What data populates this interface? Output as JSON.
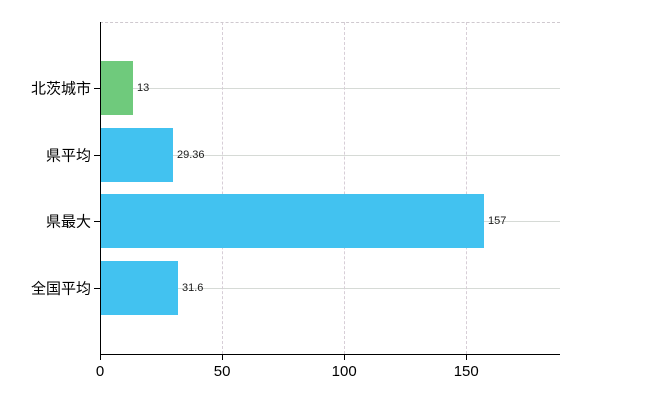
{
  "chart_data": {
    "type": "bar",
    "orientation": "horizontal",
    "title": "",
    "xlabel": "",
    "ylabel": "",
    "categories": [
      "北茨城市",
      "県平均",
      "県最大",
      "全国平均"
    ],
    "values": [
      13,
      29.36,
      157,
      31.6
    ],
    "value_labels": [
      "13",
      "29.36",
      "157",
      "31.6"
    ],
    "bar_colors": [
      "#6fca7c",
      "#42c2f0",
      "#42c2f0",
      "#42c2f0"
    ],
    "x_ticks": [
      "0",
      "50",
      "100",
      "150"
    ],
    "x_tick_values": [
      0,
      50,
      100,
      150
    ],
    "xlim": [
      0,
      188.4
    ],
    "grid": true,
    "gridline_color_horizontal": "#d6dad6",
    "gridline_color_vertical": "#d7ced7",
    "top_border_color": "#cfc9cf",
    "axis_color": "#000000",
    "background_color": "#ffffff"
  }
}
